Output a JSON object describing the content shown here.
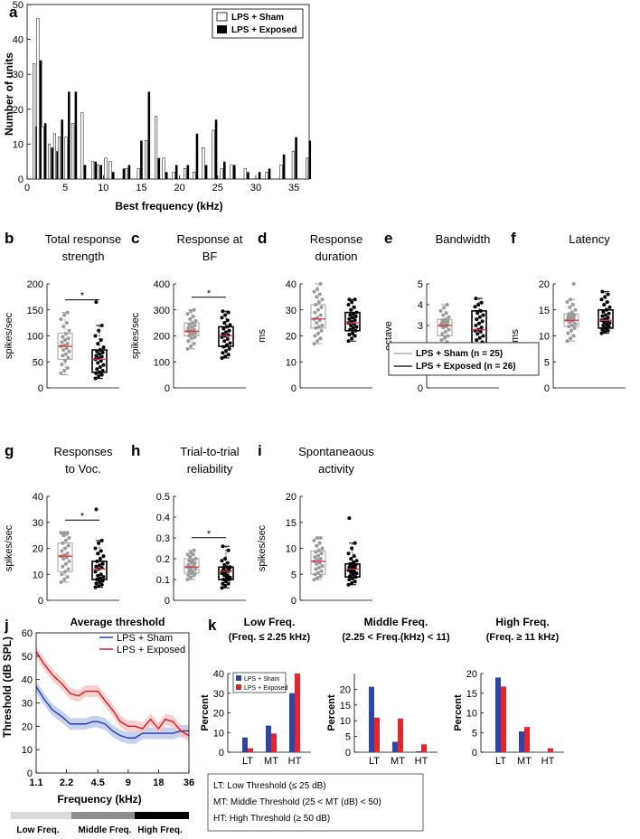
{
  "chart_data": [
    {
      "panel": "a",
      "type": "bar",
      "title": "",
      "xlabel": "Best frequency (kHz)",
      "ylabel": "Number of units",
      "xlim": [
        0,
        37
      ],
      "ylim": [
        0,
        50
      ],
      "xticks": [
        0,
        5,
        10,
        15,
        20,
        25,
        30,
        35
      ],
      "yticks": [
        0,
        10,
        20,
        30,
        40,
        50
      ],
      "legend": [
        "LPS + Sham",
        "LPS + Exposed"
      ],
      "x": [
        1.1,
        1.6,
        2.2,
        3.1,
        3.8,
        4.4,
        5.3,
        6.2,
        7.4,
        8.8,
        9.5,
        10.5,
        11.1,
        12.5,
        13.2,
        14.8,
        15.8,
        17.1,
        18.1,
        19.4,
        20.9,
        22.1,
        23.3,
        24.6,
        25.7,
        27.0,
        28.8,
        30.3,
        31.6,
        33.5,
        35.1,
        36.9
      ],
      "series": [
        {
          "name": "LPS + Sham",
          "values": [
            33,
            46,
            15,
            10,
            13,
            12,
            12,
            16,
            19,
            5,
            4,
            6,
            5,
            0,
            3,
            3,
            11,
            18,
            6,
            2,
            3,
            2,
            9,
            14,
            3,
            4,
            3,
            0,
            2,
            4,
            8,
            6
          ]
        },
        {
          "name": "LPS + Exposed",
          "values": [
            15,
            34,
            16,
            9,
            8,
            17,
            25,
            25,
            4,
            5,
            4,
            0,
            2,
            3,
            4,
            11,
            25,
            6,
            2,
            4,
            4,
            13,
            4,
            17,
            5,
            4,
            2,
            2,
            3,
            7,
            12,
            11
          ]
        }
      ]
    },
    {
      "panel": "b",
      "type": "box",
      "title": [
        "Total response",
        "strength"
      ],
      "ylabel": "spikes/sec",
      "ylim": [
        0,
        200
      ],
      "yticks": [
        0,
        50,
        100,
        150,
        200
      ],
      "sig": true,
      "groups": [
        {
          "name": "LPS + Sham",
          "q1": 55,
          "median": 80,
          "q3": 105,
          "wlo": 25,
          "whi": 145,
          "points": [
            28,
            33,
            38,
            45,
            52,
            58,
            62,
            65,
            70,
            73,
            76,
            80,
            82,
            85,
            88,
            92,
            95,
            98,
            104,
            110,
            118,
            125,
            132,
            140,
            145
          ]
        },
        {
          "name": "LPS + Exposed",
          "q1": 30,
          "median": 55,
          "q3": 73,
          "wlo": 18,
          "whi": 120,
          "points": [
            18,
            22,
            25,
            28,
            30,
            33,
            36,
            40,
            44,
            48,
            52,
            55,
            57,
            60,
            62,
            65,
            68,
            70,
            73,
            78,
            85,
            92,
            100,
            110,
            120,
            165
          ]
        }
      ]
    },
    {
      "panel": "c",
      "type": "box",
      "title": [
        "Response at",
        "BF"
      ],
      "ylabel": "spikes/sec",
      "ylim": [
        0,
        400
      ],
      "yticks": [
        0,
        100,
        200,
        300,
        400
      ],
      "sig": true,
      "groups": [
        {
          "name": "LPS + Sham",
          "q1": 200,
          "median": 218,
          "q3": 250,
          "wlo": 150,
          "whi": 300,
          "points": [
            150,
            160,
            170,
            180,
            190,
            195,
            200,
            205,
            210,
            212,
            215,
            218,
            220,
            225,
            230,
            235,
            240,
            245,
            250,
            258,
            265,
            275,
            285,
            295,
            300
          ]
        },
        {
          "name": "LPS + Exposed",
          "q1": 160,
          "median": 200,
          "q3": 235,
          "wlo": 115,
          "whi": 295,
          "points": [
            115,
            120,
            128,
            135,
            142,
            150,
            158,
            165,
            172,
            180,
            188,
            195,
            200,
            203,
            208,
            215,
            220,
            228,
            235,
            242,
            250,
            260,
            270,
            280,
            290,
            295
          ]
        }
      ]
    },
    {
      "panel": "d",
      "type": "box",
      "title": [
        "Response",
        "duration"
      ],
      "ylabel": "ms",
      "ylim": [
        0,
        40
      ],
      "yticks": [
        0,
        10,
        20,
        30,
        40
      ],
      "sig": false,
      "groups": [
        {
          "name": "LPS + Sham",
          "q1": 23,
          "median": 26.5,
          "q3": 32,
          "wlo": 17,
          "whi": 40,
          "points": [
            17,
            18,
            19,
            20,
            21,
            22,
            23,
            23.5,
            24,
            25,
            26,
            26.5,
            27,
            28,
            29,
            30,
            31,
            32,
            33,
            34,
            35,
            36,
            37,
            38,
            40
          ]
        },
        {
          "name": "LPS + Exposed",
          "q1": 22,
          "median": 25,
          "q3": 29,
          "wlo": 18,
          "whi": 34,
          "points": [
            18,
            19,
            20,
            20.5,
            21,
            22,
            22.5,
            23,
            23.5,
            24,
            24.5,
            25,
            25.5,
            26,
            26.5,
            27,
            27.5,
            28,
            28.5,
            29,
            30,
            31,
            32,
            33,
            34,
            34
          ]
        }
      ]
    },
    {
      "panel": "e",
      "type": "box",
      "title": [
        "Bandwidth"
      ],
      "ylabel": "octave",
      "ylim": [
        0,
        5
      ],
      "yticks": [
        0,
        1,
        2,
        3,
        4,
        5
      ],
      "sig": false,
      "groups": [
        {
          "name": "LPS + Sham",
          "q1": 2.5,
          "median": 3.0,
          "q3": 3.3,
          "wlo": 2.0,
          "whi": 4.0,
          "points": [
            2.0,
            2.1,
            2.2,
            2.3,
            2.4,
            2.5,
            2.6,
            2.7,
            2.8,
            2.9,
            2.95,
            3.0,
            3.0,
            3.05,
            3.1,
            3.15,
            3.2,
            3.25,
            3.3,
            3.4,
            3.5,
            3.6,
            3.7,
            3.85,
            4.0
          ]
        },
        {
          "name": "LPS + Exposed",
          "q1": 2.0,
          "median": 2.8,
          "q3": 3.7,
          "wlo": 1.7,
          "whi": 4.3,
          "points": [
            1.7,
            1.8,
            1.9,
            2.0,
            2.1,
            2.2,
            2.3,
            2.4,
            2.5,
            2.6,
            2.7,
            2.75,
            2.8,
            2.9,
            3.0,
            3.1,
            3.2,
            3.3,
            3.4,
            3.5,
            3.6,
            3.7,
            3.9,
            4.0,
            4.1,
            4.3
          ]
        }
      ]
    },
    {
      "panel": "f",
      "type": "box",
      "title": [
        "Latency"
      ],
      "ylabel": "ms",
      "ylim": [
        0,
        20
      ],
      "yticks": [
        0,
        5,
        10,
        15,
        20
      ],
      "sig": false,
      "groups": [
        {
          "name": "LPS + Sham",
          "q1": 11.8,
          "median": 13,
          "q3": 14.2,
          "wlo": 9,
          "whi": 17,
          "points": [
            9,
            9.5,
            10,
            10.5,
            11,
            11.5,
            11.8,
            12,
            12.3,
            12.6,
            12.8,
            13,
            13.2,
            13.4,
            13.6,
            13.8,
            14,
            14.2,
            14.5,
            15,
            15.5,
            16,
            16.5,
            17,
            20
          ]
        },
        {
          "name": "LPS + Exposed",
          "q1": 11.5,
          "median": 13,
          "q3": 15,
          "wlo": 10.5,
          "whi": 18.5,
          "points": [
            10.5,
            10.8,
            11,
            11.2,
            11.5,
            11.8,
            12,
            12.2,
            12.5,
            12.7,
            12.9,
            13,
            13.2,
            13.5,
            13.8,
            14,
            14.3,
            14.6,
            15,
            15.5,
            16,
            16.5,
            17,
            17.5,
            18,
            18.5
          ]
        }
      ]
    },
    {
      "panel": "g",
      "type": "box",
      "title": [
        "Responses",
        "to Voc."
      ],
      "ylabel": "spikes/sec",
      "ylim": [
        0,
        40
      ],
      "yticks": [
        0,
        10,
        20,
        30,
        40
      ],
      "sig": true,
      "groups": [
        {
          "name": "LPS + Sham",
          "q1": 11,
          "median": 17,
          "q3": 22,
          "wlo": 7,
          "whi": 26,
          "points": [
            7,
            8,
            9,
            10,
            11,
            12,
            13,
            14,
            15,
            16,
            16.5,
            17,
            17.5,
            18,
            19,
            20,
            21,
            22,
            23,
            24,
            25,
            25.5,
            26,
            26,
            26
          ]
        },
        {
          "name": "LPS + Exposed",
          "q1": 8,
          "median": 12,
          "q3": 15,
          "wlo": 5,
          "whi": 23,
          "points": [
            5,
            5.5,
            6,
            6.5,
            7,
            7.5,
            8,
            8.5,
            9,
            9.5,
            10,
            11,
            12,
            12.5,
            13,
            13.5,
            14,
            15,
            16,
            17,
            18,
            19,
            20,
            22,
            23,
            35
          ]
        }
      ]
    },
    {
      "panel": "h",
      "type": "box",
      "title": [
        "Trial-to-trial",
        "reliability"
      ],
      "ylabel": "",
      "ylim": [
        0,
        0.5
      ],
      "yticks": [
        0,
        0.1,
        0.2,
        0.3,
        0.4,
        0.5
      ],
      "sig": true,
      "groups": [
        {
          "name": "LPS + Sham",
          "q1": 0.13,
          "median": 0.16,
          "q3": 0.2,
          "wlo": 0.1,
          "whi": 0.24,
          "points": [
            0.1,
            0.11,
            0.12,
            0.12,
            0.13,
            0.13,
            0.14,
            0.14,
            0.15,
            0.15,
            0.16,
            0.16,
            0.16,
            0.17,
            0.17,
            0.18,
            0.18,
            0.19,
            0.19,
            0.2,
            0.21,
            0.22,
            0.22,
            0.23,
            0.24
          ]
        },
        {
          "name": "LPS + Exposed",
          "q1": 0.1,
          "median": 0.14,
          "q3": 0.16,
          "wlo": 0.06,
          "whi": 0.26,
          "points": [
            0.06,
            0.07,
            0.08,
            0.08,
            0.09,
            0.1,
            0.1,
            0.11,
            0.11,
            0.12,
            0.12,
            0.13,
            0.13,
            0.14,
            0.14,
            0.14,
            0.15,
            0.15,
            0.16,
            0.16,
            0.17,
            0.18,
            0.19,
            0.2,
            0.24,
            0.26
          ]
        }
      ]
    },
    {
      "panel": "i",
      "type": "box",
      "title": [
        "Spontaneaous",
        "activity"
      ],
      "ylabel": "spikes/sec",
      "ylim": [
        0,
        20
      ],
      "yticks": [
        0,
        5,
        10,
        15,
        20
      ],
      "sig": false,
      "groups": [
        {
          "name": "LPS + Sham",
          "q1": 5,
          "median": 7.5,
          "q3": 9.5,
          "wlo": 4,
          "whi": 12,
          "points": [
            4,
            4.3,
            4.6,
            5,
            5.3,
            5.6,
            6,
            6.3,
            6.6,
            7,
            7.2,
            7.5,
            7.8,
            8,
            8.3,
            8.6,
            9,
            9.3,
            9.6,
            10,
            10.5,
            11,
            11.5,
            12,
            12
          ]
        },
        {
          "name": "LPS + Exposed",
          "q1": 4.5,
          "median": 6,
          "q3": 7,
          "wlo": 3,
          "whi": 11,
          "points": [
            3,
            3.3,
            3.6,
            4,
            4.2,
            4.5,
            4.7,
            5,
            5.2,
            5.4,
            5.6,
            5.8,
            6,
            6.2,
            6.4,
            6.6,
            6.8,
            7,
            7.3,
            7.6,
            8,
            8.5,
            9,
            10,
            11,
            15.8
          ]
        }
      ]
    },
    {
      "panel": "j",
      "type": "line",
      "title": "Average threshold",
      "xlabel": "Frequency (kHz)",
      "ylabel": "Threshold (dB SPL)",
      "xscale": "log",
      "xlim": [
        1.1,
        36
      ],
      "ylim": [
        0,
        60
      ],
      "xticks": [
        1.1,
        2.2,
        4.5,
        9,
        18,
        36
      ],
      "yticks": [
        0,
        10,
        20,
        30,
        40,
        50,
        60
      ],
      "legend": [
        "LPS + Sham",
        "LPS + Exposed"
      ],
      "x": [
        1.1,
        1.3,
        1.6,
        2.0,
        2.4,
        2.9,
        3.4,
        4.0,
        4.5,
        5.3,
        6.3,
        7.5,
        9.0,
        10.5,
        12.5,
        15,
        18,
        21,
        25,
        30,
        36
      ],
      "series": [
        {
          "name": "LPS + Sham",
          "values": [
            37,
            32,
            27,
            24,
            21,
            21,
            21,
            22,
            22,
            21,
            18,
            16,
            15,
            15,
            17,
            17,
            17,
            17,
            17,
            18,
            18
          ],
          "ci": 2.5
        },
        {
          "name": "LPS + Exposed",
          "values": [
            52,
            47,
            42,
            38,
            34,
            33,
            35,
            35,
            35,
            31,
            27,
            22,
            20,
            20,
            19,
            23,
            19,
            23,
            22,
            18,
            16
          ],
          "ci": 2.5
        }
      ],
      "freq_bands": [
        "Low Freq.",
        "Middle Freq.",
        "High Freq."
      ]
    },
    {
      "panel": "k",
      "type": "bar",
      "legend": [
        "LPS + Sham",
        "LPS + Exposed"
      ],
      "ylabel": "Percent",
      "categories": [
        "LT",
        "MT",
        "HT"
      ],
      "subplots": [
        {
          "title": [
            "Low Freq.",
            "(Freq. ≤ 2.25 kHz)"
          ],
          "ylim": [
            0,
            40
          ],
          "yticks": [
            0,
            10,
            20,
            30,
            40
          ],
          "series": [
            {
              "name": "LPS + Sham",
              "values": [
                7.5,
                13.5,
                30
              ]
            },
            {
              "name": "LPS + Exposed",
              "values": [
                2,
                9.5,
                40
              ]
            }
          ]
        },
        {
          "title": [
            "Middle Freq.",
            "(2.25 < Freq.(kHz) < 11)"
          ],
          "ylim": [
            0,
            25
          ],
          "yticks": [
            0,
            5,
            10,
            15,
            20
          ],
          "series": [
            {
              "name": "LPS + Sham",
              "values": [
                20.8,
                3.3,
                0.3
              ]
            },
            {
              "name": "LPS + Exposed",
              "values": [
                11,
                10.7,
                2.5
              ]
            }
          ]
        },
        {
          "title": [
            "High Freq.",
            "(Freq. ≥ 11 kHz)"
          ],
          "ylim": [
            0,
            20
          ],
          "yticks": [
            0,
            5,
            10,
            15,
            20
          ],
          "series": [
            {
              "name": "LPS + Sham",
              "values": [
                19,
                5.3,
                0
              ]
            },
            {
              "name": "LPS + Exposed",
              "values": [
                16.7,
                6.4,
                1
              ]
            }
          ]
        }
      ]
    }
  ],
  "box_legend": [
    "LPS + Sham (n = 25)",
    "LPS + Exposed (n = 26)"
  ],
  "threshold_notes": [
    "LT: Low Threshold (≤ 25 dB)",
    "MT: Middle Threshold (25 < MT (dB) < 50)",
    "HT: High Threshold (≥ 50 dB)"
  ],
  "colors": {
    "sham_box": "#a0a0a0",
    "exposed_box": "#000000",
    "median": "#e8302a",
    "sham_line": "#2440a8",
    "exposed_line": "#e01818",
    "sham_band": "#b9c5ec",
    "exposed_band": "#f5c6c6",
    "sham_bar_k": "#2a46a6",
    "exposed_bar_k": "#e8232a"
  }
}
